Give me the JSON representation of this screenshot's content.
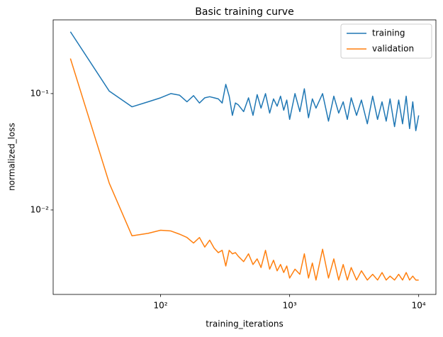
{
  "chart_data": {
    "type": "line",
    "title": "Basic training curve",
    "x_label": "training_iterations",
    "y_label": "normalized_loss",
    "x_scale": "log",
    "y_scale": "log",
    "legend": "upper right",
    "xlim": [
      14.7,
      13600
    ],
    "ylim": [
      0.00188,
      0.43
    ],
    "xticks": [
      {
        "value": 100,
        "label": "10²"
      },
      {
        "value": 1000,
        "label": "10³"
      },
      {
        "value": 10000,
        "label": "10⁴"
      }
    ],
    "yticks": [
      {
        "value": 0.01,
        "label": "10⁻²"
      },
      {
        "value": 0.1,
        "label": "10⁻¹"
      }
    ],
    "x": [
      20,
      40,
      60,
      80,
      100,
      120,
      140,
      160,
      180,
      200,
      220,
      240,
      260,
      280,
      300,
      320,
      340,
      360,
      380,
      400,
      440,
      480,
      520,
      560,
      600,
      650,
      700,
      750,
      800,
      850,
      900,
      950,
      1000,
      1100,
      1200,
      1300,
      1400,
      1500,
      1600,
      1800,
      2000,
      2200,
      2400,
      2600,
      2800,
      3000,
      3300,
      3600,
      4000,
      4400,
      4800,
      5200,
      5600,
      6000,
      6500,
      7000,
      7500,
      8000,
      8500,
      9000,
      9500,
      10000
    ],
    "series": [
      {
        "name": "training",
        "color": "#1f77b4",
        "values": [
          0.34,
          0.105,
          0.077,
          0.085,
          0.092,
          0.1,
          0.097,
          0.085,
          0.096,
          0.083,
          0.092,
          0.094,
          0.092,
          0.09,
          0.083,
          0.12,
          0.095,
          0.065,
          0.083,
          0.08,
          0.07,
          0.092,
          0.065,
          0.098,
          0.075,
          0.1,
          0.068,
          0.09,
          0.078,
          0.095,
          0.072,
          0.088,
          0.06,
          0.1,
          0.07,
          0.11,
          0.062,
          0.09,
          0.075,
          0.1,
          0.058,
          0.095,
          0.068,
          0.085,
          0.06,
          0.092,
          0.065,
          0.088,
          0.055,
          0.095,
          0.06,
          0.085,
          0.058,
          0.09,
          0.052,
          0.088,
          0.055,
          0.095,
          0.05,
          0.085,
          0.048,
          0.065
        ]
      },
      {
        "name": "validation",
        "color": "#ff7f0e",
        "values": [
          0.2,
          0.017,
          0.006,
          0.0063,
          0.0067,
          0.0066,
          0.0062,
          0.0058,
          0.0052,
          0.0058,
          0.0048,
          0.0055,
          0.0047,
          0.0043,
          0.0045,
          0.0033,
          0.0045,
          0.0042,
          0.0043,
          0.004,
          0.0036,
          0.0042,
          0.0034,
          0.0038,
          0.0032,
          0.0045,
          0.0031,
          0.0037,
          0.003,
          0.0034,
          0.0029,
          0.0033,
          0.0026,
          0.0031,
          0.0028,
          0.0042,
          0.0026,
          0.0035,
          0.0025,
          0.0046,
          0.0026,
          0.0038,
          0.0025,
          0.0034,
          0.0025,
          0.0032,
          0.0025,
          0.003,
          0.0025,
          0.0028,
          0.0025,
          0.0029,
          0.0025,
          0.0027,
          0.0025,
          0.0028,
          0.0025,
          0.0029,
          0.0025,
          0.0027,
          0.0025,
          0.0025
        ]
      }
    ]
  }
}
